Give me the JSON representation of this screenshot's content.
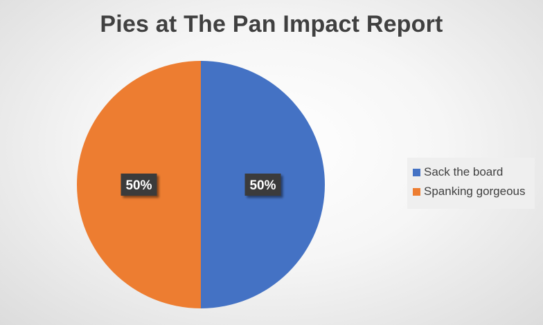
{
  "chart_data": {
    "type": "pie",
    "title": "Pies at The Pan Impact Report",
    "slices": [
      {
        "label": "Sack the board",
        "value": 50,
        "data_label": "50%",
        "color": "#4472c4"
      },
      {
        "label": "Spanking gorgeous",
        "value": 50,
        "data_label": "50%",
        "color": "#ed7d31"
      }
    ],
    "legend_position": "right",
    "data_label_style": {
      "background": "#3a3a3a",
      "text_color": "#ffffff"
    }
  }
}
